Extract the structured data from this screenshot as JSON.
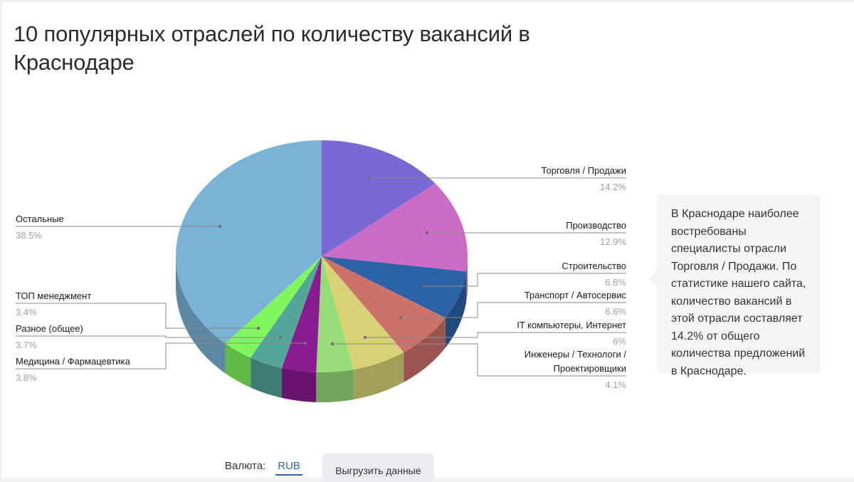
{
  "title": "10 популярных отраслей по количеству вакансий в Краснодаре",
  "chart_data": {
    "type": "pie",
    "title": "10 популярных отраслей по количеству вакансий в Краснодаре",
    "style": "3d",
    "unit": "%",
    "categories": [
      "Торговля / Продажи",
      "Производство",
      "Строительство",
      "Транспорт / Автосервис",
      "IT компьютеры, Интернет",
      "Инженеры / Технологи / Проектировщики",
      "Медицина / Фармацевтика",
      "Разное (общее)",
      "ТОП менеджмент",
      "Остальные"
    ],
    "values": [
      14.2,
      12.9,
      6.8,
      6.6,
      6.0,
      4.1,
      3.8,
      3.7,
      3.4,
      38.5
    ],
    "colors": [
      "#7b69d3",
      "#cb6dc6",
      "#2b63a5",
      "#cd716b",
      "#d9d376",
      "#96dc77",
      "#8b1b92",
      "#54a699",
      "#7ef85c",
      "#7bb3d7"
    ],
    "legend_position": "leader-line labels"
  },
  "labels": {
    "trade": {
      "name": "Торговля / Продажи",
      "pct": "14.2%"
    },
    "production": {
      "name": "Производство",
      "pct": "12.9%"
    },
    "construction": {
      "name": "Строительство",
      "pct": "6.8%"
    },
    "transport": {
      "name": "Транспорт / Автосервис",
      "pct": "6.6%"
    },
    "it": {
      "name": "IT компьютеры, Интернет",
      "pct": "6%"
    },
    "engineers": {
      "name_line1": "Инженеры / Технологи /",
      "name_line2": "Проектировщики",
      "pct": "4.1%"
    },
    "medicine": {
      "name": "Медицина / Фармацевтика",
      "pct": "3.8%"
    },
    "misc": {
      "name": "Разное (общее)",
      "pct": "3.7%"
    },
    "top": {
      "name": "ТОП менеджмент",
      "pct": "3.4%"
    },
    "other": {
      "name": "Остальные",
      "pct": "38.5%"
    }
  },
  "callout": {
    "text": "В Краснодаре наиболее востребованы специалисты отрасли Торговля / Продажи. По статистике нашего сайта, количество вакансий в этой отрасли составляет 14.2% от общего количества предложений в Краснодаре."
  },
  "footer": {
    "currency_label": "Валюта:",
    "currency_value": "RUB",
    "export_label": "Выгрузить данные"
  }
}
